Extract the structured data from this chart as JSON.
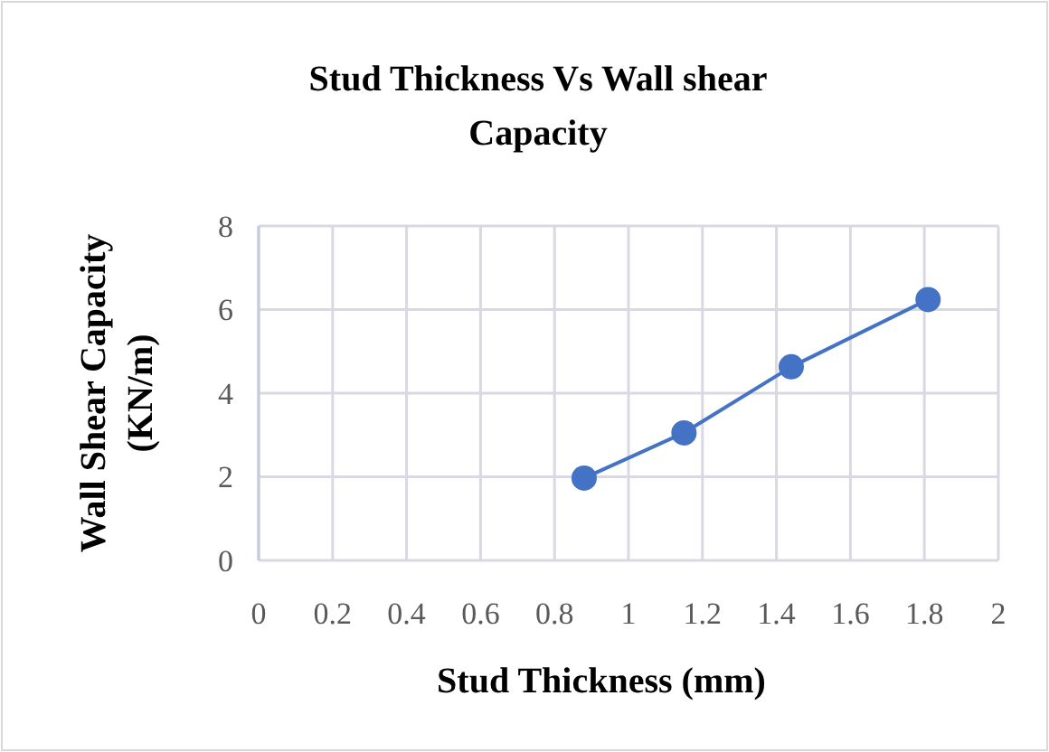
{
  "chart_data": {
    "type": "line",
    "title": "Stud Thickness Vs Wall shear Capacity",
    "xlabel": "Stud Thickness (mm)",
    "ylabel": "Wall Shear Capacity (KN/m)",
    "x": [
      0.88,
      1.15,
      1.44,
      1.81
    ],
    "series": [
      {
        "color": "#4472c4",
        "values": [
          1.97,
          3.05,
          4.63,
          6.24
        ]
      }
    ],
    "xlim": [
      0,
      2
    ],
    "xticks": [
      0,
      0.2,
      0.4,
      0.6,
      0.8,
      1,
      1.2,
      1.4,
      1.6,
      1.8,
      2
    ],
    "ylim": [
      0,
      8
    ],
    "yticks": [
      0,
      2,
      4,
      6,
      8
    ],
    "grid": true,
    "marker": "circle",
    "line_style": "solid"
  }
}
